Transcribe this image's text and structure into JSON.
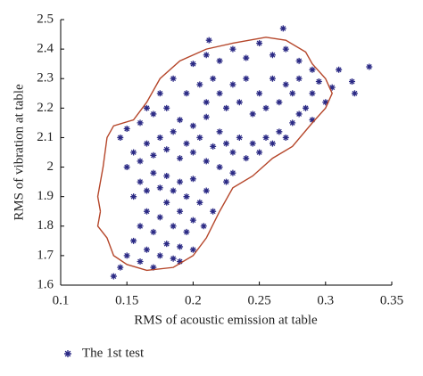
{
  "chart_data": {
    "type": "scatter",
    "xlabel": "RMS of acoustic emission at table",
    "ylabel": "RMS of vibration at table",
    "xlim": [
      0.1,
      0.35
    ],
    "ylim": [
      1.6,
      2.5
    ],
    "xticks": [
      0.1,
      0.15,
      0.2,
      0.25,
      0.3,
      0.35
    ],
    "yticks": [
      1.6,
      1.7,
      1.8,
      1.9,
      2,
      2.1,
      2.2,
      2.3,
      2.4,
      2.5
    ],
    "legend": "bottom-left",
    "series": [
      {
        "name": "The 1st test",
        "color": "#2b2a85",
        "x": [
          0.15,
          0.155,
          0.16,
          0.165,
          0.17,
          0.175,
          0.18,
          0.185,
          0.19,
          0.16,
          0.165,
          0.17,
          0.175,
          0.18,
          0.185,
          0.19,
          0.195,
          0.2,
          0.155,
          0.16,
          0.165,
          0.17,
          0.175,
          0.18,
          0.185,
          0.19,
          0.195,
          0.2,
          0.205,
          0.21,
          0.15,
          0.155,
          0.16,
          0.165,
          0.17,
          0.175,
          0.18,
          0.185,
          0.19,
          0.195,
          0.2,
          0.205,
          0.21,
          0.215,
          0.22,
          0.145,
          0.15,
          0.16,
          0.17,
          0.18,
          0.19,
          0.2,
          0.21,
          0.22,
          0.225,
          0.23,
          0.235,
          0.24,
          0.245,
          0.25,
          0.255,
          0.26,
          0.265,
          0.27,
          0.275,
          0.28,
          0.285,
          0.29,
          0.195,
          0.205,
          0.21,
          0.215,
          0.22,
          0.225,
          0.23,
          0.235,
          0.24,
          0.245,
          0.25,
          0.255,
          0.26,
          0.265,
          0.27,
          0.275,
          0.28,
          0.2,
          0.21,
          0.22,
          0.23,
          0.24,
          0.25,
          0.26,
          0.27,
          0.28,
          0.29,
          0.185,
          0.175,
          0.165,
          0.14,
          0.145,
          0.333,
          0.32,
          0.322,
          0.31,
          0.305,
          0.29,
          0.268,
          0.212,
          0.225,
          0.23,
          0.215,
          0.208,
          0.19,
          0.2,
          0.3,
          0.295
        ],
        "values": [
          1.7,
          1.75,
          1.68,
          1.72,
          1.66,
          1.7,
          1.74,
          1.69,
          1.73,
          1.8,
          1.85,
          1.78,
          1.83,
          1.88,
          1.8,
          1.85,
          1.78,
          1.82,
          1.9,
          1.95,
          1.92,
          1.98,
          1.93,
          1.97,
          1.92,
          1.95,
          1.9,
          1.96,
          1.88,
          1.92,
          2.0,
          2.05,
          2.02,
          2.08,
          2.04,
          2.1,
          2.06,
          2.12,
          2.03,
          2.08,
          2.05,
          2.1,
          2.02,
          2.07,
          2.0,
          2.1,
          2.13,
          2.15,
          2.18,
          2.2,
          2.16,
          2.14,
          2.17,
          2.12,
          2.08,
          2.05,
          2.1,
          2.03,
          2.08,
          2.05,
          2.1,
          2.08,
          2.12,
          2.1,
          2.15,
          2.18,
          2.2,
          2.25,
          2.25,
          2.28,
          2.22,
          2.3,
          2.25,
          2.2,
          2.28,
          2.22,
          2.3,
          2.18,
          2.25,
          2.2,
          2.3,
          2.22,
          2.28,
          2.25,
          2.3,
          2.35,
          2.38,
          2.36,
          2.4,
          2.37,
          2.42,
          2.38,
          2.4,
          2.36,
          2.33,
          2.3,
          2.25,
          2.2,
          1.63,
          1.66,
          2.34,
          2.29,
          2.25,
          2.33,
          2.27,
          2.16,
          2.47,
          2.43,
          1.95,
          1.98,
          1.85,
          1.8,
          1.68,
          1.72,
          2.22,
          2.29
        ]
      }
    ],
    "boundary": {
      "color": "#b5462a",
      "x": [
        0.13,
        0.128,
        0.132,
        0.135,
        0.14,
        0.155,
        0.165,
        0.175,
        0.19,
        0.21,
        0.23,
        0.255,
        0.27,
        0.285,
        0.29,
        0.3,
        0.305,
        0.3,
        0.29,
        0.275,
        0.26,
        0.245,
        0.23,
        0.22,
        0.21,
        0.2,
        0.185,
        0.165,
        0.15,
        0.14,
        0.135,
        0.128,
        0.13
      ],
      "y": [
        1.85,
        1.9,
        2.0,
        2.1,
        2.14,
        2.16,
        2.22,
        2.3,
        2.36,
        2.4,
        2.42,
        2.44,
        2.43,
        2.39,
        2.35,
        2.3,
        2.25,
        2.2,
        2.15,
        2.07,
        2.03,
        1.97,
        1.93,
        1.85,
        1.76,
        1.7,
        1.66,
        1.65,
        1.67,
        1.7,
        1.76,
        1.8,
        1.85
      ]
    }
  }
}
